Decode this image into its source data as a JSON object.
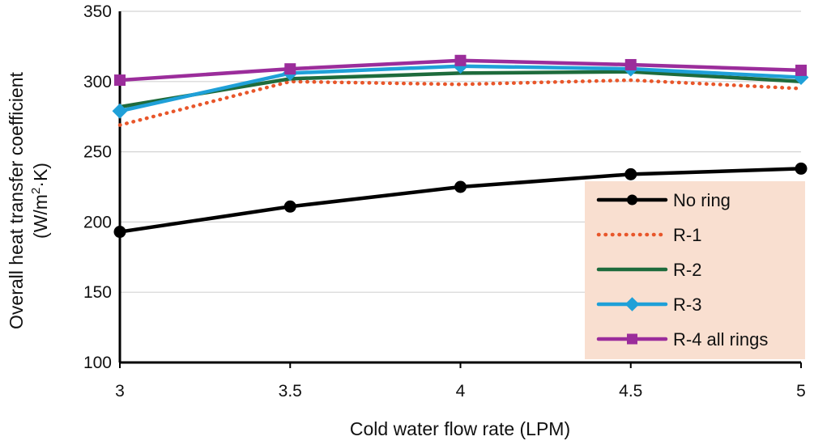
{
  "chart_data": {
    "type": "line",
    "x": [
      3,
      3.5,
      4,
      4.5,
      5
    ],
    "x_ticks": [
      "3",
      "3.5",
      "4",
      "4.5",
      "5"
    ],
    "y_ticks": [
      "100",
      "150",
      "200",
      "250",
      "300",
      "350"
    ],
    "xlim": [
      3,
      5
    ],
    "ylim": [
      100,
      350
    ],
    "xlabel": "Cold water flow rate (LPM)",
    "ylabel_line1": "Overall heat transfer coefficient",
    "ylabel_line2_prefix": "(W/m",
    "ylabel_line2_sup": "2",
    "ylabel_line2_suffix": "·K)",
    "grid": "horizontal",
    "legend_placement": "bottom-right",
    "legend_background": "#f9dfd0",
    "series": [
      {
        "name": "No ring",
        "values": [
          193,
          211,
          225,
          234,
          238
        ],
        "color": "#000000",
        "style": "solid",
        "marker": "circle"
      },
      {
        "name": "R-1",
        "values": [
          269,
          300,
          298,
          301,
          295
        ],
        "color": "#e8562a",
        "style": "dotted",
        "marker": "none"
      },
      {
        "name": "R-2",
        "values": [
          282,
          302,
          306,
          307,
          300
        ],
        "color": "#1e6b3c",
        "style": "solid",
        "marker": "none"
      },
      {
        "name": "R-3",
        "values": [
          279,
          306,
          311,
          309,
          303
        ],
        "color": "#1fa0d8",
        "style": "solid",
        "marker": "diamond"
      },
      {
        "name": "R-4 all rings",
        "values": [
          301,
          309,
          315,
          312,
          308
        ],
        "color": "#9b2d9b",
        "style": "solid",
        "marker": "square"
      }
    ]
  }
}
